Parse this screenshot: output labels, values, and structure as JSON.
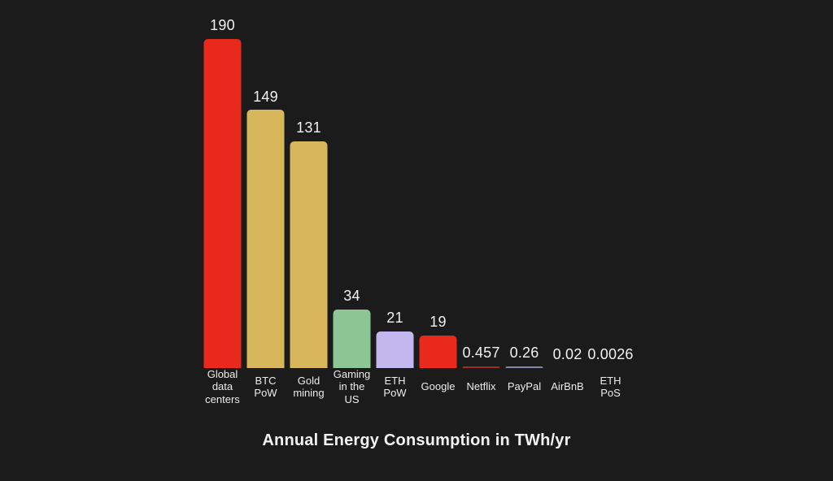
{
  "chart_data": {
    "type": "bar",
    "title": "Annual Energy Consumption in TWh/yr",
    "xlabel": "",
    "ylabel": "",
    "unit": "TWh/yr",
    "ylim": [
      0,
      190
    ],
    "grid": false,
    "legend_position": "none",
    "background_color": "#1b1b1b",
    "text_color": "#f2f2f2",
    "categories": [
      "Global\ndata\ncenters",
      "BTC\nPoW",
      "Gold\nmining",
      "Gaming\nin the\nUS",
      "ETH\nPoW",
      "Google",
      "Netflix",
      "PayPal",
      "AirBnB",
      "ETH\nPoS"
    ],
    "values": [
      190,
      149,
      131,
      34,
      21,
      19,
      0.457,
      0.26,
      0.02,
      0.0026
    ],
    "value_labels": [
      "190",
      "149",
      "131",
      "34",
      "21",
      "19",
      "0.457",
      "0.26",
      "0.02",
      "0.0026"
    ],
    "bar_colors": [
      "#e8291c",
      "#d8b75c",
      "#d8b75c",
      "#8ec594",
      "#c3b7ef",
      "#e8291c",
      "#9e2d26",
      "#7f88a9",
      null,
      null
    ]
  }
}
